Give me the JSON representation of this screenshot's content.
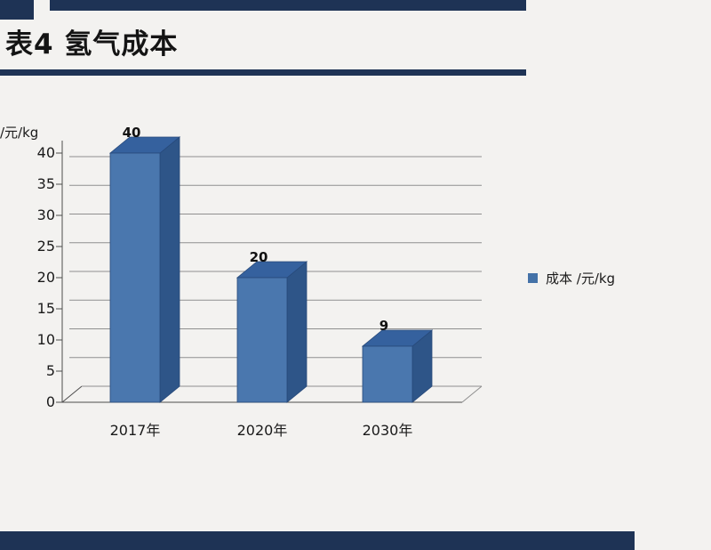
{
  "colors": {
    "navy": "#1e3355",
    "page_bg": "#f3f2f0",
    "text": "#161616",
    "gridline": "#8f8f8f",
    "axis": "#4d4d4d",
    "bar_front": "#4a77ae",
    "bar_side": "#2e5588",
    "bar_top": "#35619e",
    "bar_edge": "#27497a",
    "legend_marker": "#4472a8"
  },
  "header": {
    "title": "表4 氢气成本"
  },
  "chart_data": {
    "type": "bar",
    "style": "3d-column",
    "title": "表4 氢气成本",
    "categories": [
      "2017年",
      "2020年",
      "2030年"
    ],
    "values": [
      40,
      20,
      9
    ],
    "data_labels": [
      "40",
      "20",
      "9"
    ],
    "series": [
      {
        "name": "成本 /元/kg",
        "values": [
          40,
          20,
          9
        ]
      }
    ],
    "ylabel": "/元/kg",
    "ylim": [
      0,
      40
    ],
    "ytick_step": 5,
    "yticks": [
      0,
      5,
      10,
      15,
      20,
      25,
      30,
      35,
      40
    ],
    "legend": {
      "position": "right",
      "label": "成本 /元/kg"
    },
    "grid": true
  }
}
